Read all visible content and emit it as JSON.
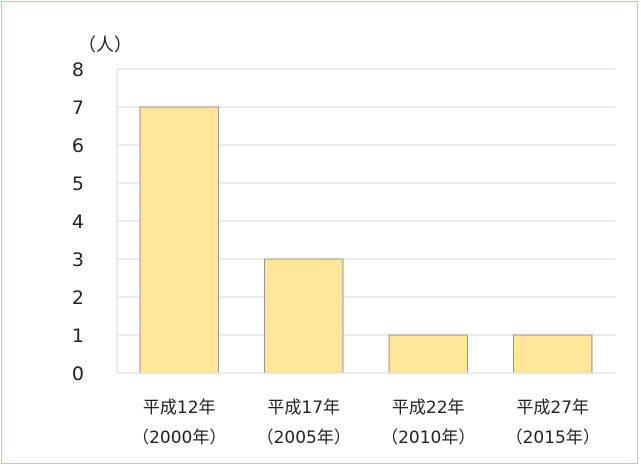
{
  "chart_data": {
    "type": "bar",
    "title": "",
    "xlabel": "",
    "ylabel": "（人）",
    "ylim": [
      0,
      8
    ],
    "yticks": [
      "0",
      "1",
      "2",
      "3",
      "4",
      "5",
      "6",
      "7",
      "8"
    ],
    "grid": true,
    "legend": "none",
    "categories": [
      {
        "line1": "平成12年",
        "line2": "（2000年）"
      },
      {
        "line1": "平成17年",
        "line2": "（2005年）"
      },
      {
        "line1": "平成22年",
        "line2": "（2010年）"
      },
      {
        "line1": "平成27年",
        "line2": "（2015年）"
      }
    ],
    "values": [
      7,
      3,
      1,
      1
    ],
    "colors": {
      "bar_fill": "#ffe699",
      "bar_stroke": "#7f7f7f",
      "frame_border": "#f2c94c"
    }
  }
}
